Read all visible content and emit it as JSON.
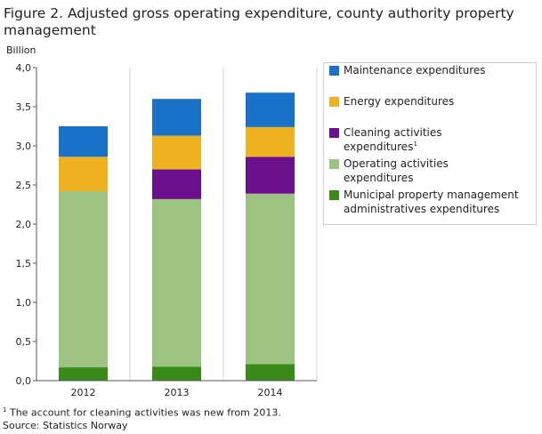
{
  "title": "Figure 2. Adjusted gross operating expenditure, county authority property management",
  "footnote_marker": "1",
  "footnote_text": "The account for cleaning activities was new from 2013.",
  "source": "Source: Statistics Norway",
  "chart_data": {
    "type": "bar",
    "stacked": true,
    "ylabel": "Billion",
    "ylim": [
      0,
      4.0
    ],
    "yticks": [
      "0,0",
      "0,5",
      "1,0",
      "1,5",
      "2,0",
      "2,5",
      "3,0",
      "3,5",
      "4,0"
    ],
    "categories": [
      "2012",
      "2013",
      "2014"
    ],
    "series": [
      {
        "name": "Municipal property management administratives expenditures",
        "color": "#3a8a1a",
        "values": [
          0.17,
          0.18,
          0.21
        ]
      },
      {
        "name": "Operating activities expenditures",
        "color": "#9dc382",
        "values": [
          2.25,
          2.14,
          2.18
        ]
      },
      {
        "name": "Cleaning  activities  expenditures",
        "name_sup": "1",
        "color": "#6a0f8e",
        "values": [
          0,
          0.38,
          0.47
        ]
      },
      {
        "name": "Energy expenditures",
        "color": "#efb220",
        "values": [
          0.44,
          0.43,
          0.38
        ]
      },
      {
        "name": "Maintenance expenditures",
        "color": "#1a72c8",
        "values": [
          0.39,
          0.47,
          0.44
        ]
      }
    ],
    "legend_order": [
      4,
      3,
      2,
      1,
      0
    ],
    "legend_position": "right",
    "grid": "vertical"
  }
}
